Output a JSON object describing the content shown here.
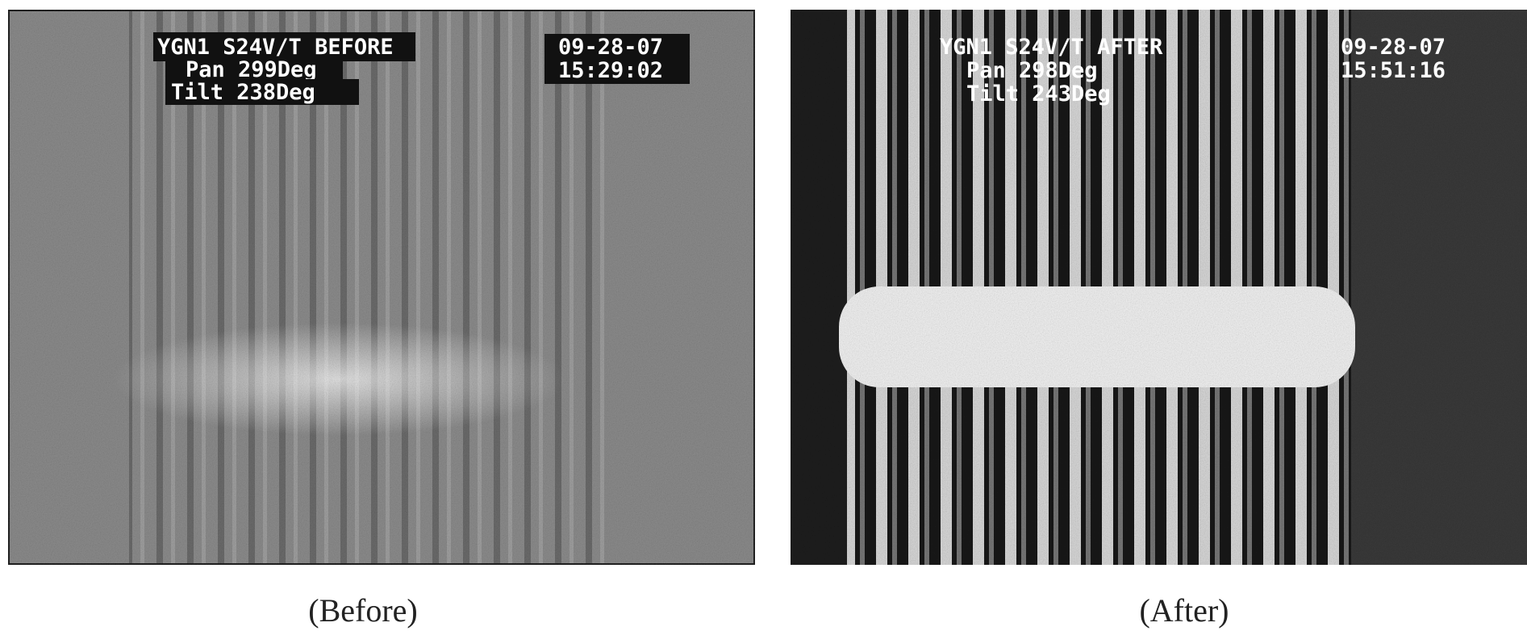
{
  "panels": [
    {
      "overlay": {
        "camera": "YGN1 S24V/T BEFORE",
        "pan": "Pan 299Deg",
        "tilt": "Tilt 238Deg",
        "date": "09-28-07",
        "time": "15:29:02"
      },
      "caption": "(Before)"
    },
    {
      "overlay": {
        "camera": "YGN1 S24V/T AFTER",
        "pan": "Pan 298Deg",
        "tilt": "Tilt 243Deg",
        "date": "09-28-07",
        "time": "15:51:16"
      },
      "caption": "(After)"
    }
  ]
}
